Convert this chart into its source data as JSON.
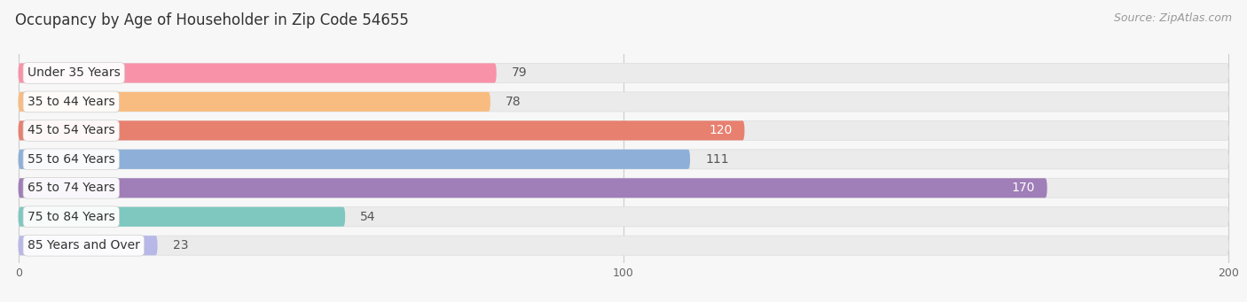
{
  "title": "Occupancy by Age of Householder in Zip Code 54655",
  "source": "Source: ZipAtlas.com",
  "categories": [
    "Under 35 Years",
    "35 to 44 Years",
    "45 to 54 Years",
    "55 to 64 Years",
    "65 to 74 Years",
    "75 to 84 Years",
    "85 Years and Over"
  ],
  "values": [
    79,
    78,
    120,
    111,
    170,
    54,
    23
  ],
  "bar_colors": [
    "#F892A8",
    "#F9BC80",
    "#E88070",
    "#8EB0D8",
    "#A07EB8",
    "#7EC8C0",
    "#B8B8E8"
  ],
  "label_inside_bar": [
    false,
    false,
    true,
    false,
    true,
    false,
    false
  ],
  "background_color": "#f7f7f7",
  "bar_bg_color": "#ebebeb",
  "xlim": [
    -2,
    202
  ],
  "xticks": [
    0,
    100,
    200
  ],
  "title_fontsize": 12,
  "source_fontsize": 9,
  "label_fontsize": 10,
  "value_fontsize": 10,
  "bar_height": 0.68,
  "bar_gap": 0.05
}
